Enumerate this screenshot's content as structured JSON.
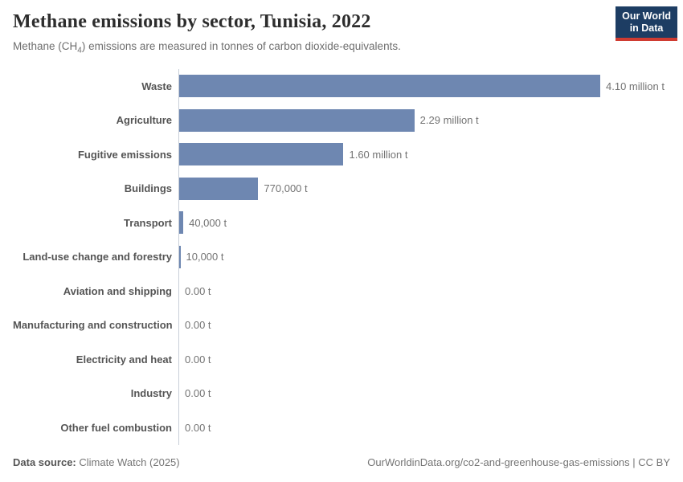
{
  "header": {
    "title": "Methane emissions by sector, Tunisia, 2022",
    "subtitle": {
      "pre": "Methane (CH",
      "sub": "4",
      "post": ") emissions are measured in tonnes of carbon dioxide-equivalents."
    },
    "logo": {
      "line1": "Our World",
      "line2": "in Data",
      "bg_color": "#1d3d63",
      "accent_color": "#cf3b31",
      "text_color": "#ffffff"
    }
  },
  "chart_data": {
    "type": "bar",
    "orientation": "horizontal",
    "title": "Methane emissions by sector, Tunisia, 2022",
    "unit": "tonnes of carbon dioxide-equivalents (t)",
    "categories": [
      "Waste",
      "Agriculture",
      "Fugitive emissions",
      "Buildings",
      "Transport",
      "Land-use change and forestry",
      "Aviation and shipping",
      "Manufacturing and construction",
      "Electricity and heat",
      "Industry",
      "Other fuel combustion"
    ],
    "values": [
      4100000,
      2290000,
      1600000,
      770000,
      40000,
      10000,
      0,
      0,
      0,
      0,
      0
    ],
    "value_labels": [
      "4.10 million t",
      "2.29 million t",
      "1.60 million t",
      "770,000 t",
      "40,000 t",
      "10,000 t",
      "0.00 t",
      "0.00 t",
      "0.00 t",
      "0.00 t",
      "0.00 t"
    ],
    "xlim": [
      0,
      4100000
    ],
    "bar_color": "#6e87b1",
    "axis_color": "#c8cfd9",
    "grid": false,
    "legend": "none"
  },
  "footer": {
    "datasource_label": "Data source:",
    "datasource_value": "Climate Watch (2025)",
    "credit": "OurWorldinData.org/co2-and-greenhouse-gas-emissions | CC BY"
  }
}
